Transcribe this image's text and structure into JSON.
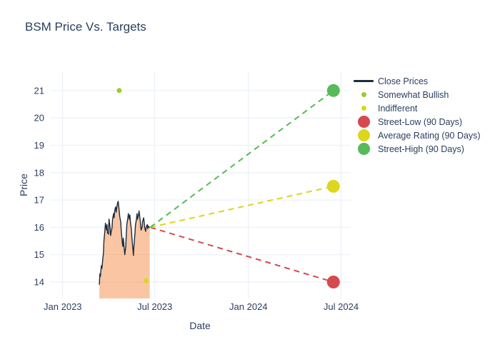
{
  "legend": {
    "position": "right",
    "items": [
      {
        "label": "Close Prices",
        "marker": "line",
        "color": "#1c2b3d"
      },
      {
        "label": "Somewhat Bullish",
        "marker": "dot-small",
        "color": "#9acd32"
      },
      {
        "label": "Indifferent",
        "marker": "dot-small",
        "color": "#dcd61d"
      },
      {
        "label": "Street-Low (90 Days)",
        "marker": "dot-large",
        "color": "#d6494f"
      },
      {
        "label": "Average Rating (90 Days)",
        "marker": "dot-large",
        "color": "#dcd61d"
      },
      {
        "label": "Street-High (90 Days)",
        "marker": "dot-large",
        "color": "#57ba58"
      }
    ]
  },
  "chart_data": {
    "type": "line",
    "title": "BSM Price Vs. Targets",
    "xlabel": "Date",
    "ylabel": "Price",
    "text_color": "#2a3f5f",
    "grid_color": "#e8eef6",
    "background": "#ffffff",
    "x_axis": {
      "epoch": "2023-01-01",
      "tick_labels": [
        "Jan 2023",
        "Jul 2023",
        "Jan 2024",
        "Jul 2024"
      ],
      "tick_days": [
        0,
        181,
        365,
        547
      ],
      "range_days": [
        -25,
        566
      ]
    },
    "y_axis": {
      "ticks": [
        14,
        15,
        16,
        17,
        18,
        19,
        20,
        21
      ],
      "range": [
        13.4,
        21.7
      ]
    },
    "series": [
      {
        "name": "Close Prices",
        "kind": "line-area",
        "color": "#1c2b3d",
        "fill_color": "rgba(246,139,69,0.5)",
        "points": [
          [
            72,
            13.9
          ],
          [
            73,
            14.3
          ],
          [
            74,
            14.2
          ],
          [
            76,
            14.6
          ],
          [
            77,
            14.5
          ],
          [
            79,
            14.9
          ],
          [
            80,
            15.05
          ],
          [
            81,
            15.5
          ],
          [
            83,
            15.9
          ],
          [
            84,
            16.15
          ],
          [
            86,
            15.9
          ],
          [
            87,
            16.1
          ],
          [
            88,
            15.8
          ],
          [
            90,
            15.75
          ],
          [
            91,
            16.3
          ],
          [
            93,
            16.0
          ],
          [
            94,
            15.7
          ],
          [
            95,
            15.8
          ],
          [
            97,
            16.0
          ],
          [
            98,
            16.3
          ],
          [
            100,
            16.5
          ],
          [
            101,
            16.35
          ],
          [
            102,
            16.6
          ],
          [
            104,
            16.75
          ],
          [
            105,
            16.55
          ],
          [
            107,
            16.8
          ],
          [
            108,
            16.9
          ],
          [
            109,
            16.95
          ],
          [
            111,
            16.6
          ],
          [
            112,
            16.4
          ],
          [
            114,
            16.2
          ],
          [
            115,
            15.9
          ],
          [
            117,
            15.45
          ],
          [
            118,
            15.3
          ],
          [
            119,
            15.6
          ],
          [
            121,
            15.2
          ],
          [
            122,
            15.0
          ],
          [
            124,
            15.3
          ],
          [
            125,
            15.8
          ],
          [
            126,
            16.1
          ],
          [
            128,
            16.35
          ],
          [
            129,
            16.5
          ],
          [
            131,
            16.3
          ],
          [
            132,
            16.45
          ],
          [
            133,
            16.2
          ],
          [
            135,
            15.9
          ],
          [
            136,
            15.6
          ],
          [
            138,
            15.2
          ],
          [
            139,
            14.97
          ],
          [
            140,
            15.3
          ],
          [
            142,
            15.8
          ],
          [
            143,
            16.1
          ],
          [
            145,
            16.3
          ],
          [
            146,
            16.5
          ],
          [
            147,
            16.3
          ],
          [
            149,
            16.45
          ],
          [
            150,
            16.6
          ],
          [
            152,
            16.3
          ],
          [
            153,
            16.1
          ],
          [
            154,
            15.9
          ],
          [
            156,
            16.0
          ],
          [
            157,
            16.2
          ],
          [
            159,
            16.35
          ],
          [
            160,
            16.2
          ],
          [
            161,
            16.0
          ],
          [
            163,
            15.85
          ],
          [
            164,
            16.0
          ],
          [
            166,
            16.1
          ],
          [
            167,
            15.95
          ],
          [
            168,
            16.05
          ],
          [
            170,
            16.0
          ],
          [
            171,
            16.0
          ]
        ]
      },
      {
        "name": "Somewhat Bullish",
        "kind": "marker",
        "color": "#9acd32",
        "size": 7,
        "points": [
          [
            111,
            21
          ]
        ]
      },
      {
        "name": "Indifferent",
        "kind": "marker",
        "color": "#dcd61d",
        "size": 7,
        "points": [
          [
            164,
            14.05
          ]
        ]
      },
      {
        "name": "Street-Low (90 Days)",
        "kind": "dashed-line-marker",
        "color": "#d6494f",
        "size": 18,
        "points": [
          [
            172,
            16
          ],
          [
            532,
            14
          ]
        ]
      },
      {
        "name": "Average Rating (90 Days)",
        "kind": "dashed-line-marker",
        "color": "#dcd61d",
        "size": 18,
        "points": [
          [
            172,
            16
          ],
          [
            532,
            17.5
          ]
        ]
      },
      {
        "name": "Street-High (90 Days)",
        "kind": "dashed-line-marker",
        "color": "#57ba58",
        "size": 18,
        "points": [
          [
            172,
            16
          ],
          [
            532,
            21
          ]
        ]
      }
    ]
  }
}
